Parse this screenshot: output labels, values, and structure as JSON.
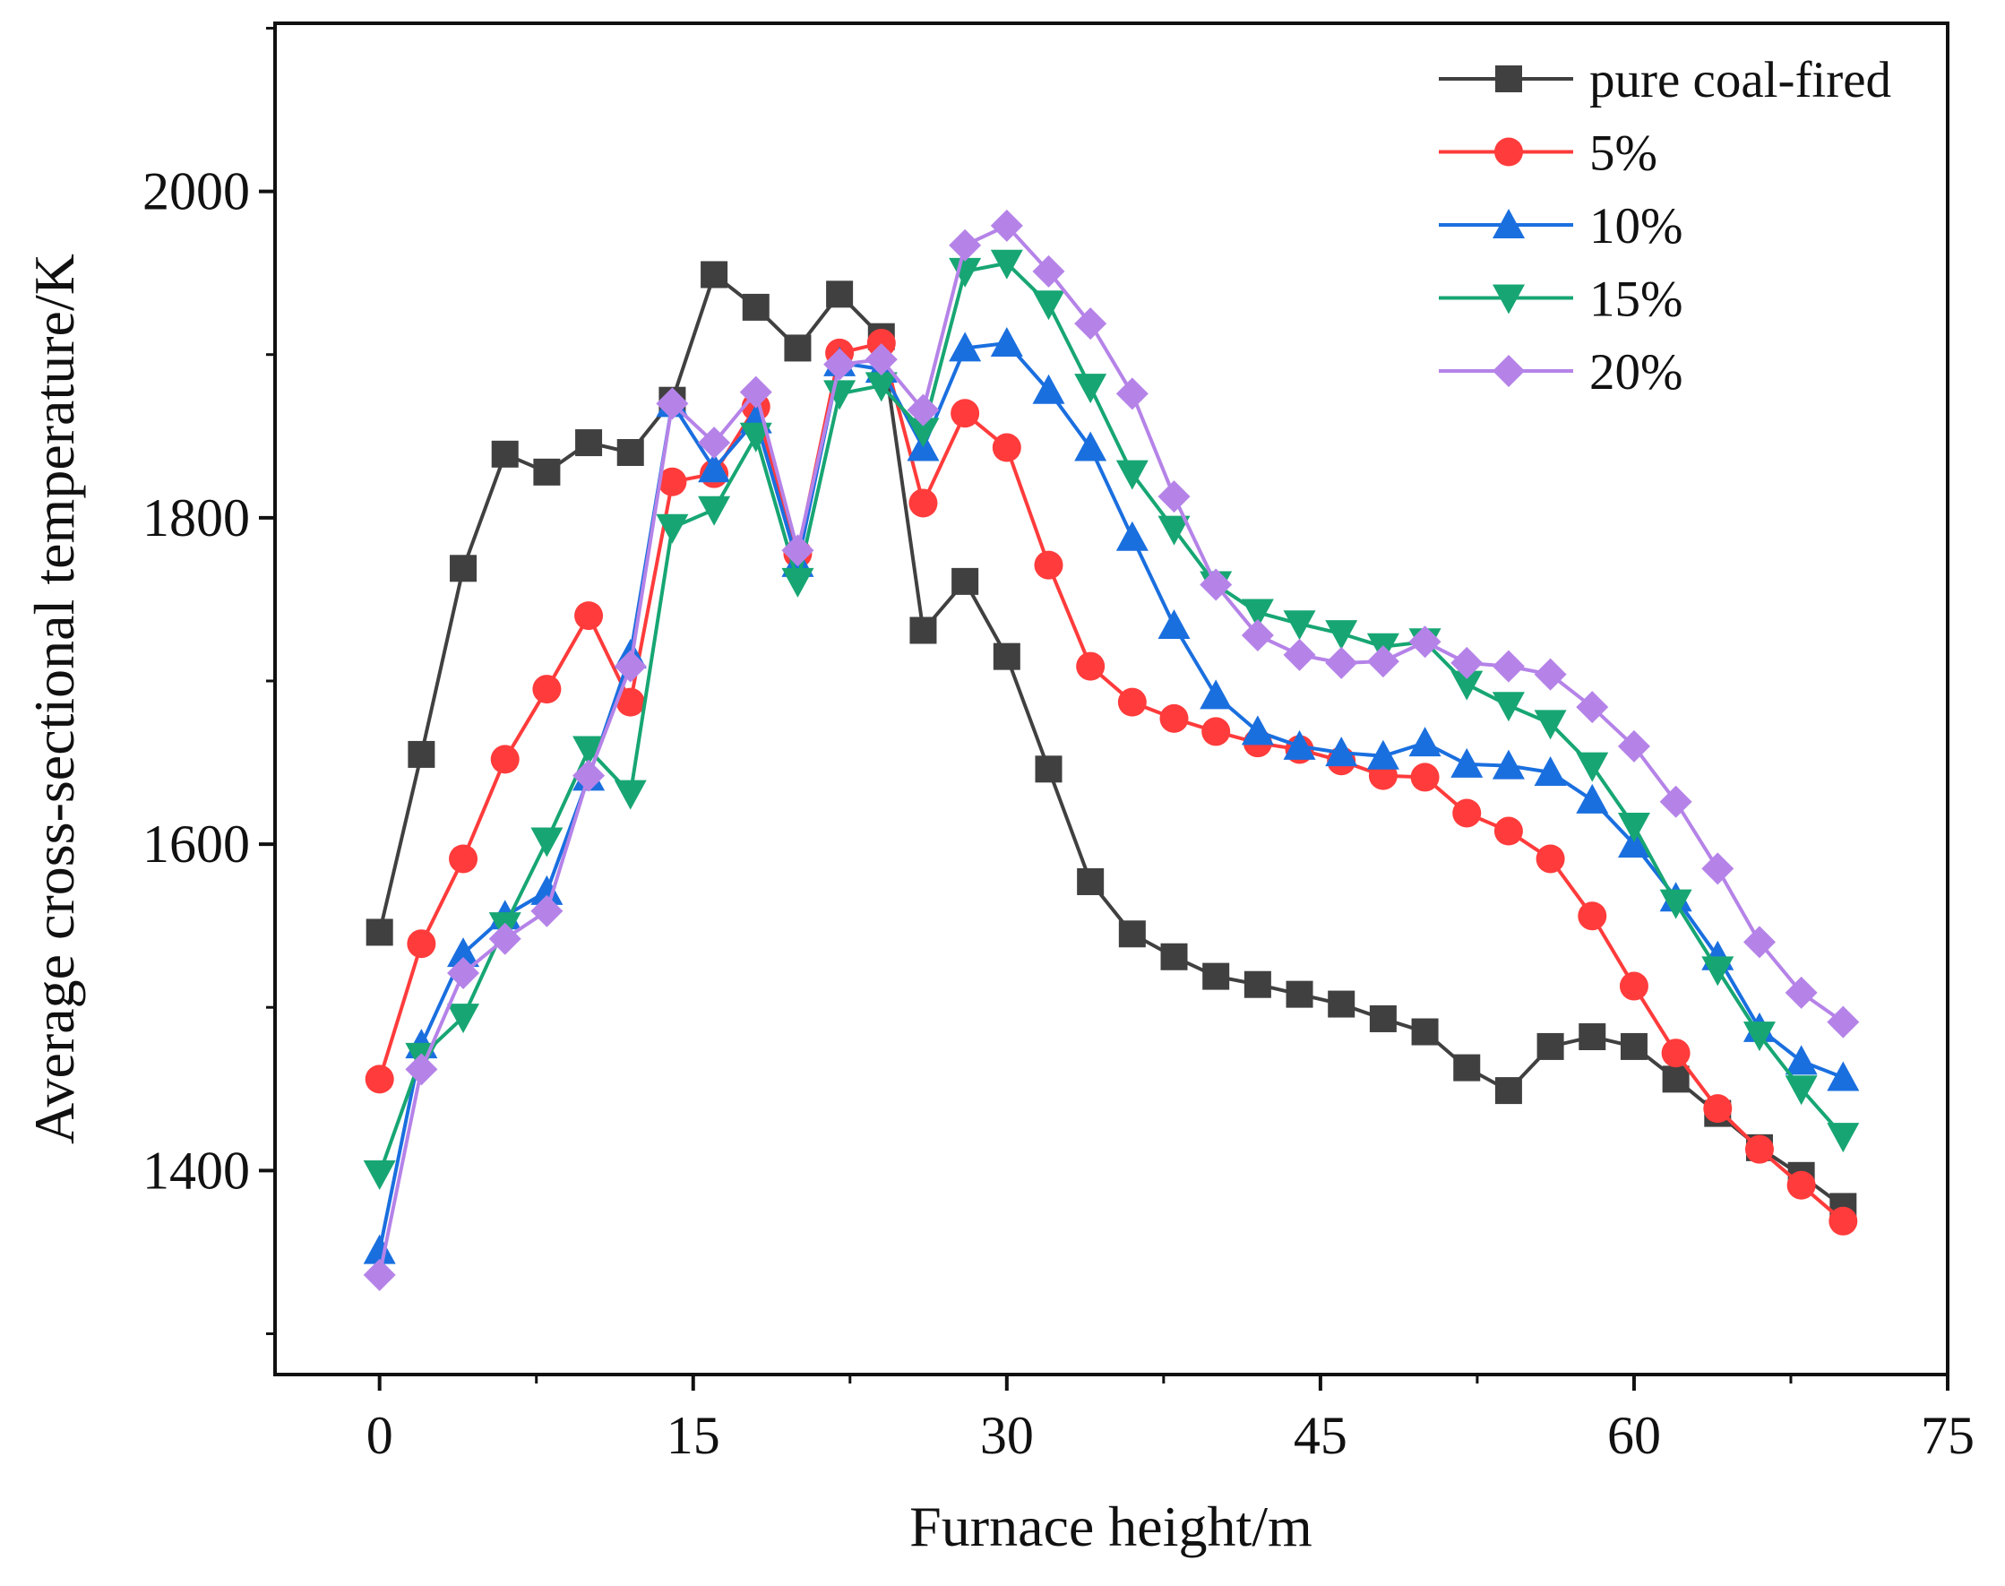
{
  "chart_data": {
    "type": "line",
    "title": "",
    "xlabel": "Furnace height/m",
    "ylabel": "Average cross-sectional temperature/K",
    "xlim": [
      -5,
      75
    ],
    "ylim": [
      1275,
      2103
    ],
    "xticks": [
      0,
      15,
      30,
      45,
      60,
      75
    ],
    "yticks": [
      1400,
      1600,
      1800,
      2000
    ],
    "xtick_labels": [
      "0",
      "15",
      "30",
      "45",
      "60",
      "75"
    ],
    "ytick_labels": [
      "1400",
      "1600",
      "1800",
      "2000"
    ],
    "grid": false,
    "legend_position": "top-right",
    "x": [
      0,
      2,
      4,
      6,
      8,
      10,
      12,
      14,
      16,
      18,
      20,
      22,
      24,
      26,
      28,
      30,
      32,
      34,
      36,
      38,
      40,
      42,
      44,
      46,
      48,
      50,
      52,
      54,
      56,
      58,
      60,
      62,
      64,
      66,
      68,
      70
    ],
    "series": [
      {
        "name": "pure coal-fired",
        "color": "#404040",
        "marker": "square",
        "values": [
          1546,
          1655,
          1769,
          1839,
          1828,
          1846,
          1840,
          1872,
          1949,
          1929,
          1904,
          1937,
          1911,
          1731,
          1761,
          1715,
          1646,
          1577,
          1545,
          1531,
          1519,
          1514,
          1508,
          1502,
          1493,
          1485,
          1463,
          1449,
          1476,
          1482,
          1476,
          1456,
          1435,
          1414,
          1397,
          1378
        ]
      },
      {
        "name": "5%",
        "color": "#ff3b3b",
        "marker": "circle",
        "values": [
          1456,
          1539,
          1591,
          1652,
          1695,
          1740,
          1687,
          1822,
          1827,
          1868,
          1778,
          1901,
          1907,
          1809,
          1864,
          1843,
          1771,
          1709,
          1687,
          1677,
          1669,
          1662,
          1658,
          1651,
          1642,
          1641,
          1619,
          1608,
          1591,
          1556,
          1513,
          1472,
          1438,
          1413,
          1391,
          1369
        ]
      },
      {
        "name": "10%",
        "color": "#1a6fdf",
        "marker": "triangle-up",
        "values": [
          1351,
          1477,
          1533,
          1556,
          1571,
          1641,
          1716,
          1870,
          1830,
          1860,
          1772,
          1895,
          1891,
          1843,
          1904,
          1907,
          1878,
          1843,
          1788,
          1734,
          1691,
          1669,
          1660,
          1656,
          1654,
          1662,
          1649,
          1648,
          1644,
          1627,
          1600,
          1567,
          1531,
          1487,
          1467,
          1457
        ]
      },
      {
        "name": "15%",
        "color": "#17a673",
        "marker": "triangle-down",
        "values": [
          1398,
          1470,
          1494,
          1550,
          1602,
          1658,
          1631,
          1794,
          1805,
          1850,
          1761,
          1876,
          1881,
          1853,
          1951,
          1956,
          1931,
          1880,
          1827,
          1793,
          1759,
          1742,
          1735,
          1729,
          1721,
          1724,
          1698,
          1685,
          1674,
          1648,
          1611,
          1564,
          1523,
          1483,
          1450,
          1421
        ]
      },
      {
        "name": "20%",
        "color": "#b583e8",
        "marker": "diamond",
        "values": [
          1336,
          1462,
          1521,
          1542,
          1559,
          1642,
          1709,
          1870,
          1846,
          1877,
          1780,
          1894,
          1897,
          1866,
          1967,
          1979,
          1951,
          1919,
          1876,
          1813,
          1759,
          1728,
          1716,
          1711,
          1712,
          1724,
          1711,
          1709,
          1704,
          1684,
          1660,
          1626,
          1585,
          1540,
          1509,
          1491
        ]
      }
    ]
  }
}
